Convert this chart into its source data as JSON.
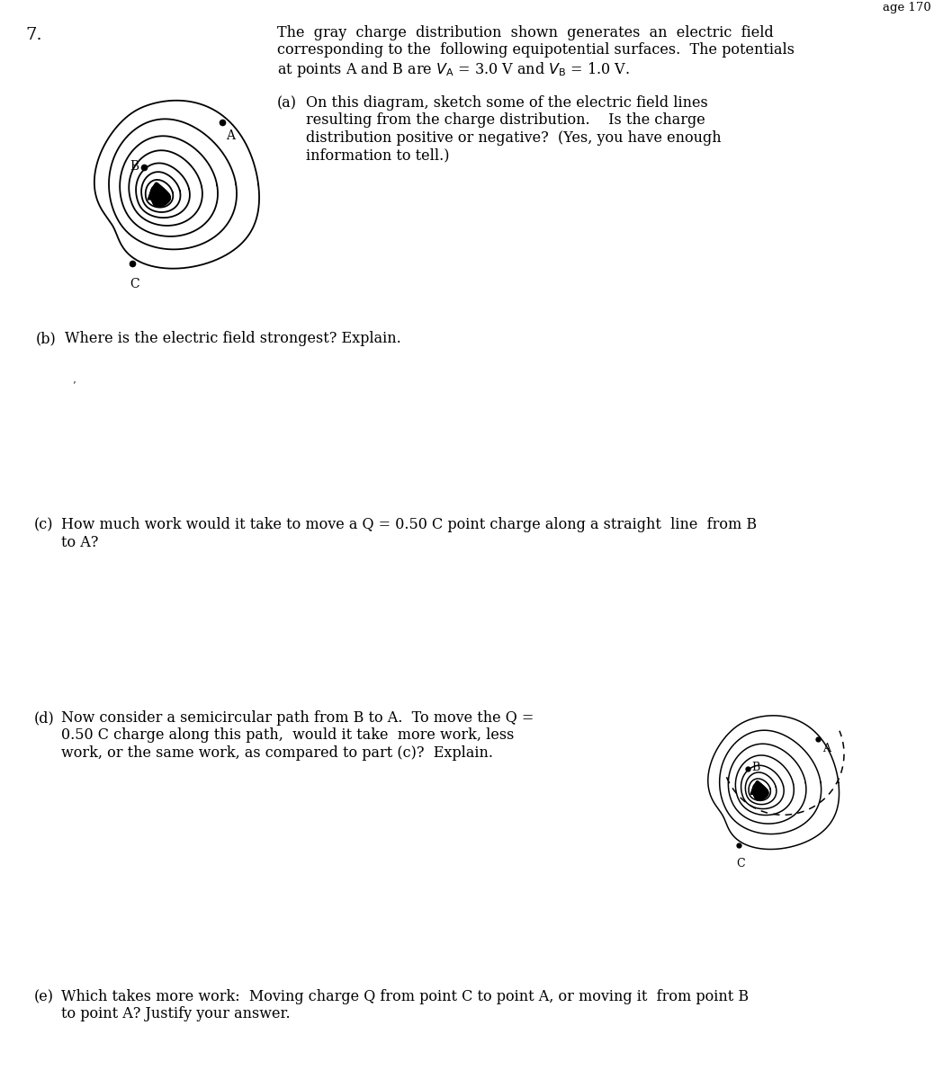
{
  "title_number": "7.",
  "bg_color": "#ffffff",
  "text_color": "#000000",
  "font_family": "DejaVu Serif",
  "main_font_size": 11.5,
  "label_font_size": 11.5,
  "number_font_size": 14,
  "intro_lines": [
    "The  gray  charge  distribution  shown  generates  an  electric  field",
    "corresponding to the  following equipotential surfaces.  The potentials",
    "at points A and B are V\\u2090 = 3.0 V and V\\u2091 = 1.0 V."
  ],
  "part_a_indent_text": [
    "On this diagram, sketch some of the electric field lines",
    "resulting from the charge distribution.    Is the charge",
    "distribution positive or negative?  (Yes, you have enough",
    "information to tell.)"
  ],
  "part_b_text": "Where is the electric field strongest? Explain.",
  "part_c_text": [
    "How much work would it take to move a Q = 0.50 C point charge along a straight  line  from B",
    "to A?"
  ],
  "part_d_text": [
    "Now consider a semicircular path from B to A.  To move the Q =",
    "0.50 C charge along this path,  would it take  more work, less",
    "work, or the same work, as compared to part (c)?  Explain."
  ],
  "part_e_text": [
    "Which takes more work:  Moving charge Q from point C to point A, or moving it  from point B",
    "to point A? Justify your answer."
  ]
}
